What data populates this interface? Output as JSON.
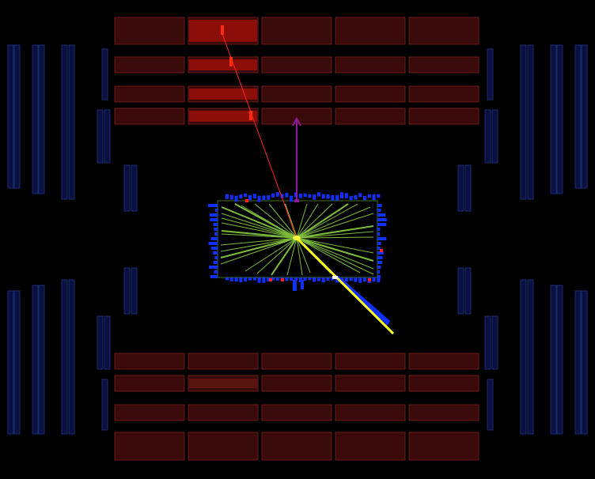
{
  "display": {
    "background": "#000000",
    "colors": {
      "muon_chamber_fill": "#3a0a0a",
      "muon_chamber_stroke": "#6a1a1a",
      "muon_hit": "#a01008",
      "barrel_chamber": "#0a1040",
      "barrel_chamber_stroke": "#1a2a70",
      "tracker_outline": "#2a4a10",
      "track": "#7cbc3a",
      "muon_track": "#ff2020",
      "met_arrow": "#8a1a9a",
      "electron_jet": "#ffff20",
      "calo_deposit": "#1030ff",
      "vertex": "#ffff40"
    },
    "icons": [
      "met-arrow-icon"
    ]
  }
}
